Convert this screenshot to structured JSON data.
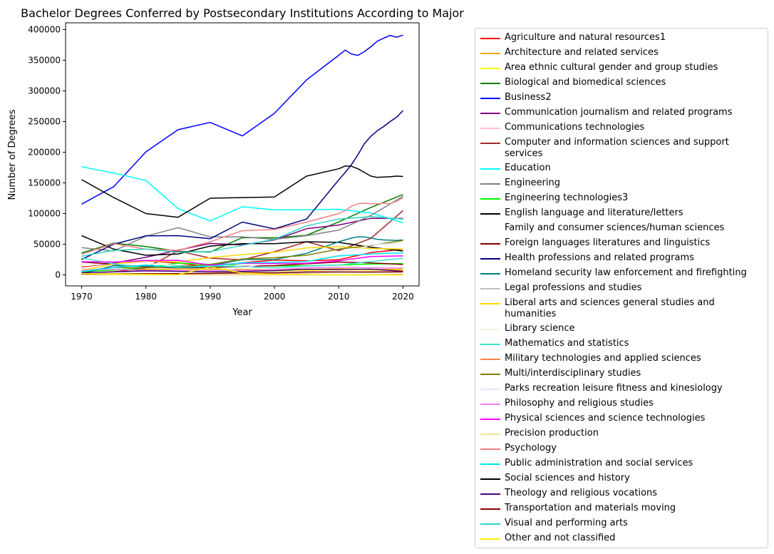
{
  "chart_data": {
    "type": "line",
    "title": "Bachelor Degrees Conferred by Postsecondary Institutions According to Major",
    "xlabel": "Year",
    "ylabel": "Number of Degrees",
    "xlim": [
      1967.5,
      2022.5
    ],
    "ylim": [
      -18000,
      411000
    ],
    "xticks": [
      1970,
      1980,
      1990,
      2000,
      2010,
      2020
    ],
    "yticks": [
      0,
      50000,
      100000,
      150000,
      200000,
      250000,
      300000,
      350000,
      400000
    ],
    "grid": false,
    "legend_position": "right",
    "series": [
      {
        "name": "Agriculture and natural resources1",
        "color": "#ff0000",
        "x": [
          1970,
          1975,
          1980,
          1985,
          1990,
          1995,
          2000,
          2005,
          2010,
          2015,
          2020
        ],
        "y": [
          12672,
          17528,
          22802,
          19317,
          12900,
          19832,
          24238,
          23002,
          24766,
          36277,
          41900
        ]
      },
      {
        "name": "Architecture and related services",
        "color": "#ffa500",
        "x": [
          1970,
          1975,
          1980,
          1985,
          1990,
          1995,
          2000,
          2005,
          2010,
          2015,
          2020
        ],
        "y": [
          5570,
          8226,
          9132,
          9325,
          9364,
          8756,
          8462,
          9237,
          10051,
          8901,
          9200
        ]
      },
      {
        "name": "Area ethnic cultural gender and group studies",
        "color": "#ffff00",
        "x": [
          1970,
          1975,
          1980,
          1985,
          1990,
          1995,
          2000,
          2005,
          2010,
          2015,
          2020
        ],
        "y": [
          2579,
          5573,
          6500,
          5400,
          4600,
          6100,
          6400,
          7500,
          8500,
          7800,
          7600
        ]
      },
      {
        "name": "Biological and biomedical sciences",
        "color": "#008000",
        "x": [
          1970,
          1975,
          1980,
          1985,
          1990,
          1995,
          2000,
          2005,
          2010,
          2015,
          2020
        ],
        "y": [
          35743,
          51741,
          46190,
          38445,
          37204,
          60852,
          60500,
          64600,
          86400,
          110000,
          131000
        ]
      },
      {
        "name": "Business2",
        "color": "#0000ff",
        "x": [
          1970,
          1975,
          1980,
          1985,
          1990,
          1995,
          2000,
          2005,
          2010,
          2011,
          2012,
          2013,
          2014,
          2015,
          2016,
          2017,
          2018,
          2019,
          2020
        ],
        "y": [
          115396,
          143800,
          200521,
          236700,
          248568,
          226600,
          263500,
          318000,
          358100,
          366500,
          360000,
          358000,
          364000,
          372000,
          381000,
          386000,
          390500,
          387500,
          391000
        ]
      },
      {
        "name": "Communication journalism and related programs",
        "color": "#800080",
        "x": [
          1970,
          1975,
          1980,
          1985,
          1990,
          1995,
          2000,
          2005,
          2010,
          2015,
          2020
        ],
        "y": [
          10802,
          19248,
          28616,
          40200,
          51300,
          48800,
          57000,
          75200,
          81300,
          92200,
          92000
        ]
      },
      {
        "name": "Communications technologies",
        "color": "#ffc0cb",
        "x": [
          1970,
          1975,
          1980,
          1985,
          1990,
          1995,
          2000,
          2005,
          2010,
          2015,
          2020
        ],
        "y": [
          500,
          1200,
          1800,
          1500,
          1300,
          1100,
          1200,
          2500,
          4700,
          5100,
          5200
        ]
      },
      {
        "name": "Computer and information sciences and support services",
        "color": "#a52a2a",
        "x": [
          1970,
          1975,
          1980,
          1985,
          1990,
          1995,
          2000,
          2005,
          2010,
          2015,
          2020
        ],
        "y": [
          1588,
          5033,
          11154,
          39121,
          27347,
          24404,
          37788,
          54111,
          39589,
          59581,
          104874
        ]
      },
      {
        "name": "Education",
        "color": "#00ffff",
        "x": [
          1970,
          1975,
          1980,
          1985,
          1990,
          1995,
          2000,
          2005,
          2010,
          2015,
          2020
        ],
        "y": [
          176307,
          166000,
          154000,
          108000,
          88000,
          111000,
          106000,
          106000,
          107000,
          101000,
          85000
        ]
      },
      {
        "name": "Engineering",
        "color": "#808080",
        "x": [
          1970,
          1975,
          1980,
          1985,
          1990,
          1995,
          2000,
          2005,
          2010,
          2015,
          2020
        ],
        "y": [
          44479,
          39000,
          63000,
          77000,
          62000,
          62000,
          58000,
          64000,
          73000,
          97000,
          128000
        ]
      },
      {
        "name": "Engineering technologies3",
        "color": "#00ff00",
        "x": [
          1970,
          1975,
          1980,
          1985,
          1990,
          1995,
          2000,
          2005,
          2010,
          2015,
          2020
        ],
        "y": [
          5148,
          7943,
          11713,
          19200,
          17100,
          15600,
          14600,
          14900,
          16000,
          17600,
          18500
        ]
      },
      {
        "name": "English language and literature/letters",
        "color": "#000000",
        "x": [
          1970,
          1975,
          1980,
          1985,
          1990,
          1995,
          2000,
          2005,
          2010,
          2015,
          2020
        ],
        "y": [
          63914,
          42000,
          32000,
          34000,
          47000,
          51000,
          51000,
          54000,
          53000,
          45000,
          39000
        ]
      },
      {
        "name": "Family and consumer sciences/human sciences",
        "color": "#ffffff",
        "x": [
          1970,
          1975,
          1980,
          1985,
          1990,
          1995,
          2000,
          2005,
          2010,
          2015,
          2020
        ],
        "y": [
          11167,
          17700,
          18400,
          15500,
          14000,
          15400,
          16300,
          20000,
          21900,
          24600,
          22800
        ]
      },
      {
        "name": "Foreign languages literatures and linguistics",
        "color": "#800000",
        "x": [
          1970,
          1975,
          1980,
          1985,
          1990,
          1995,
          2000,
          2005,
          2010,
          2015,
          2020
        ],
        "y": [
          20988,
          17500,
          12500,
          11500,
          12000,
          13800,
          15000,
          18000,
          21000,
          19500,
          17000
        ]
      },
      {
        "name": "Health professions and related programs",
        "color": "#000080",
        "x": [
          1970,
          1975,
          1980,
          1985,
          1990,
          1995,
          2000,
          2005,
          2010,
          2011,
          2012,
          2013,
          2014,
          2015,
          2016,
          2017,
          2018,
          2019,
          2020
        ],
        "y": [
          25223,
          50000,
          63665,
          64000,
          59000,
          86000,
          75000,
          91000,
          155000,
          167000,
          180000,
          196000,
          214000,
          226000,
          235000,
          242000,
          250000,
          257000,
          268000
        ]
      },
      {
        "name": "Homeland security law enforcement and firefighting",
        "color": "#008080",
        "x": [
          1970,
          1975,
          1980,
          1985,
          1990,
          1995,
          2000,
          2005,
          2010,
          2011,
          2012,
          2013,
          2014,
          2015,
          2016,
          2017,
          2018,
          2019,
          2020
        ],
        "y": [
          2045,
          15000,
          14500,
          12500,
          15000,
          25000,
          25000,
          35000,
          54000,
          57000,
          60000,
          62000,
          62000,
          60000,
          58000,
          57000,
          56500,
          56000,
          57000
        ]
      },
      {
        "name": "Legal professions and studies",
        "color": "#c0c0c0",
        "x": [
          1970,
          1975,
          1980,
          1985,
          1990,
          1995,
          2000,
          2005,
          2010,
          2015,
          2020
        ],
        "y": [
          545,
          800,
          700,
          1200,
          1600,
          2300,
          2000,
          3300,
          4400,
          4200,
          4600
        ]
      },
      {
        "name": "Liberal arts and sciences general studies and humanities",
        "color": "#ffd700",
        "x": [
          1970,
          1975,
          1980,
          1985,
          1990,
          1995,
          2000,
          2005,
          2010,
          2015,
          2020
        ],
        "y": [
          7481,
          18000,
          23000,
          21000,
          28000,
          33000,
          37000,
          44000,
          46000,
          43000,
          42000
        ]
      },
      {
        "name": "Library science",
        "color": "#f5f5dc",
        "x": [
          1970,
          1975,
          1980,
          1985,
          1990,
          1995,
          2000,
          2005,
          2010,
          2015,
          2020
        ],
        "y": [
          1013,
          1100,
          400,
          200,
          100,
          50,
          150,
          80,
          70,
          80,
          100
        ]
      },
      {
        "name": "Mathematics and statistics",
        "color": "#40e0d0",
        "x": [
          1970,
          1975,
          1980,
          1985,
          1990,
          1995,
          2000,
          2005,
          2010,
          2015,
          2020
        ],
        "y": [
          27442,
          18000,
          11400,
          15000,
          14300,
          13500,
          11400,
          14400,
          16000,
          21800,
          27000
        ]
      },
      {
        "name": "Military technologies and applied sciences",
        "color": "#ff7f50",
        "x": [
          1970,
          1975,
          1980,
          1985,
          1990,
          1995,
          2000,
          2005,
          2010,
          2015,
          2020
        ],
        "y": [
          357,
          500,
          300,
          200,
          100,
          50,
          10,
          40,
          100,
          200,
          900
        ]
      },
      {
        "name": "Multi/interdisciplinary studies",
        "color": "#808000",
        "x": [
          1970,
          1975,
          1980,
          1985,
          1990,
          1995,
          2000,
          2005,
          2010,
          2015,
          2020
        ],
        "y": [
          6346,
          12000,
          11500,
          13000,
          17000,
          26000,
          28000,
          32000,
          42000,
          48000,
          56000
        ]
      },
      {
        "name": "Parks recreation leisure fitness and kinesiology",
        "color": "#e6e6fa",
        "x": [
          1970,
          1975,
          1980,
          1985,
          1990,
          1995,
          2000,
          2005,
          2010,
          2015,
          2020
        ],
        "y": [
          1621,
          5000,
          5800,
          4600,
          4600,
          12000,
          20000,
          22000,
          32000,
          49000,
          52000
        ]
      },
      {
        "name": "Philosophy and religious studies",
        "color": "#ee82ee",
        "x": [
          1970,
          1975,
          1980,
          1985,
          1990,
          1995,
          2000,
          2005,
          2010,
          2015,
          2020
        ],
        "y": [
          7300,
          9000,
          7500,
          6500,
          7000,
          7500,
          8400,
          11600,
          12400,
          11700,
          11000
        ]
      },
      {
        "name": "Physical sciences and science technologies",
        "color": "#ff00ff",
        "x": [
          1970,
          1975,
          1980,
          1985,
          1990,
          1995,
          2000,
          2005,
          2010,
          2015,
          2020
        ],
        "y": [
          21410,
          21000,
          23400,
          23700,
          16000,
          19000,
          18500,
          19000,
          23000,
          30000,
          31000
        ]
      },
      {
        "name": "Precision production",
        "color": "#f0e68c",
        "x": [
          1970,
          1975,
          1980,
          1985,
          1990,
          1995,
          2000,
          2005,
          2010,
          2015,
          2020
        ],
        "y": [
          0,
          0,
          0,
          100,
          200,
          300,
          400,
          100,
          50,
          50,
          50
        ]
      },
      {
        "name": "Psychology",
        "color": "#f08080",
        "x": [
          1970,
          1975,
          1980,
          1985,
          1990,
          1995,
          2000,
          2005,
          2010,
          2011,
          2012,
          2013,
          2014,
          2015,
          2016,
          2017,
          2018,
          2019,
          2020
        ],
        "y": [
          33606,
          51000,
          42000,
          40000,
          54000,
          72000,
          74000,
          86000,
          100000,
          105000,
          112000,
          116000,
          117000,
          116000,
          116000,
          117000,
          116000,
          120000,
          126000
        ]
      },
      {
        "name": "Public administration and social services",
        "color": "#00e5ee",
        "x": [
          1970,
          1975,
          1980,
          1985,
          1990,
          1995,
          2000,
          2005,
          2010,
          2015,
          2020
        ],
        "y": [
          5466,
          12000,
          16000,
          12000,
          13900,
          19800,
          20200,
          21700,
          31000,
          34000,
          36000
        ]
      },
      {
        "name": "Social sciences and history",
        "color": "#000000",
        "x": [
          1970,
          1975,
          1980,
          1985,
          1990,
          1995,
          2000,
          2005,
          2010,
          2011,
          2012,
          2013,
          2014,
          2015,
          2016,
          2017,
          2018,
          2019,
          2020
        ],
        "y": [
          155324,
          126000,
          100000,
          94000,
          125000,
          126000,
          127000,
          161000,
          173000,
          177500,
          177000,
          173000,
          167000,
          161000,
          159000,
          159500,
          160000,
          161000,
          160500
        ]
      },
      {
        "name": "Theology and religious vocations",
        "color": "#4b0082",
        "x": [
          1970,
          1975,
          1980,
          1985,
          1990,
          1995,
          2000,
          2005,
          2010,
          2015,
          2020
        ],
        "y": [
          3500,
          5000,
          6500,
          6000,
          5000,
          5500,
          6900,
          9200,
          8700,
          9300,
          6000
        ]
      },
      {
        "name": "Transportation and materials moving",
        "color": "#8b0000",
        "x": [
          1970,
          1975,
          1980,
          1985,
          1990,
          1995,
          2000,
          2005,
          2010,
          2015,
          2020
        ],
        "y": [
          1500,
          1800,
          2000,
          2000,
          2400,
          3600,
          3400,
          4800,
          4800,
          4700,
          5000
        ]
      },
      {
        "name": "Visual and performing arts",
        "color": "#30d5c8",
        "x": [
          1970,
          1975,
          1980,
          1985,
          1990,
          1995,
          2000,
          2005,
          2010,
          2015,
          2020
        ],
        "y": [
          30394,
          40000,
          42000,
          37000,
          38000,
          48000,
          58000,
          80000,
          91000,
          95000,
          91000
        ]
      },
      {
        "name": "Other and not classified",
        "color": "#ffee00",
        "x": [
          1970,
          1975,
          1980,
          1985,
          1990,
          1995,
          2000,
          2005,
          2010,
          2015,
          2020
        ],
        "y": [
          2000,
          1500,
          1000,
          500,
          13000,
          3000,
          800,
          500,
          200,
          100,
          100
        ]
      }
    ]
  }
}
